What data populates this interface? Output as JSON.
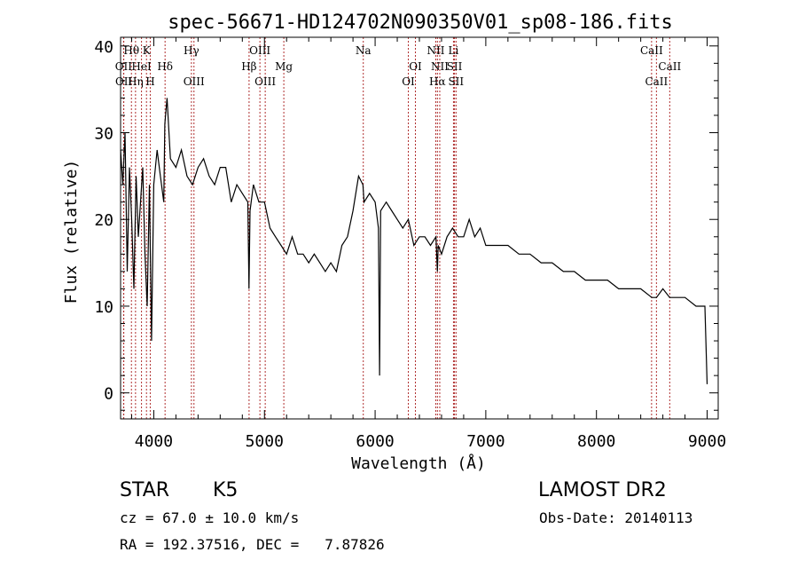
{
  "chart_data": {
    "type": "line",
    "title": "spec-56671-HD124702N090350V01_sp08-186.fits",
    "xlabel": "Wavelength (Å)",
    "ylabel": "Flux (relative)",
    "xlim": [
      3700,
      9100
    ],
    "ylim": [
      -3,
      41
    ],
    "x_ticks": [
      4000,
      5000,
      6000,
      7000,
      8000,
      9000
    ],
    "y_ticks": [
      0,
      10,
      20,
      30,
      40
    ],
    "grid": false,
    "series": [
      {
        "x": [
          3700,
          3720,
          3740,
          3760,
          3780,
          3800,
          3820,
          3840,
          3860,
          3880,
          3900,
          3920,
          3940,
          3960,
          3980,
          4000,
          4030,
          4060,
          4090,
          4100,
          4120,
          4150,
          4200,
          4250,
          4300,
          4350,
          4400,
          4450,
          4500,
          4550,
          4600,
          4650,
          4700,
          4750,
          4800,
          4850,
          4860,
          4870,
          4900,
          4950,
          5000,
          5050,
          5100,
          5150,
          5200,
          5250,
          5300,
          5350,
          5400,
          5450,
          5500,
          5550,
          5600,
          5650,
          5700,
          5750,
          5800,
          5850,
          5890,
          5900,
          5950,
          6000,
          6030,
          6040,
          6050,
          6100,
          6150,
          6200,
          6250,
          6300,
          6350,
          6400,
          6450,
          6500,
          6550,
          6563,
          6570,
          6600,
          6650,
          6700,
          6750,
          6800,
          6850,
          6900,
          6950,
          7000,
          7100,
          7200,
          7300,
          7400,
          7500,
          7600,
          7700,
          7800,
          7900,
          8000,
          8100,
          8200,
          8300,
          8400,
          8500,
          8542,
          8600,
          8662,
          8700,
          8800,
          8900,
          8980,
          9000
        ],
        "y": [
          28,
          24,
          30,
          14,
          26,
          20,
          12,
          25,
          18,
          22,
          26,
          16,
          10,
          24,
          6,
          24,
          28,
          25,
          22,
          31,
          34,
          27,
          26,
          28,
          25,
          24,
          26,
          27,
          25,
          24,
          26,
          26,
          22,
          24,
          23,
          22,
          12,
          21,
          24,
          22,
          22,
          19,
          18,
          17,
          16,
          18,
          16,
          16,
          15,
          16,
          15,
          14,
          15,
          14,
          17,
          18,
          21,
          25,
          24,
          22,
          23,
          22,
          19,
          2,
          21,
          22,
          21,
          20,
          19,
          20,
          17,
          18,
          18,
          17,
          18,
          14,
          17,
          16,
          18,
          19,
          18,
          18,
          20,
          18,
          19,
          17,
          17,
          17,
          16,
          16,
          15,
          15,
          14,
          14,
          13,
          13,
          13,
          12,
          12,
          12,
          11,
          11,
          12,
          11,
          11,
          11,
          10,
          10,
          1
        ]
      }
    ],
    "line_labels": [
      {
        "text": "Hθ",
        "x": 3798,
        "row": 1
      },
      {
        "text": "OII",
        "x": 3727,
        "row": 2
      },
      {
        "text": "OII",
        "x": 3729,
        "row": 3
      },
      {
        "text": "K",
        "x": 3934,
        "row": 1
      },
      {
        "text": "Hη",
        "x": 3835,
        "row": 3
      },
      {
        "text": "HeI",
        "x": 3889,
        "row": 2
      },
      {
        "text": "H",
        "x": 3968,
        "row": 3
      },
      {
        "text": "Hδ",
        "x": 4102,
        "row": 2
      },
      {
        "text": "Hγ",
        "x": 4340,
        "row": 1
      },
      {
        "text": "OIII",
        "x": 4363,
        "row": 3
      },
      {
        "text": "Hβ",
        "x": 4861,
        "row": 2
      },
      {
        "text": "OIII",
        "x": 4959,
        "row": 1
      },
      {
        "text": "OIII",
        "x": 5007,
        "row": 3
      },
      {
        "text": "Mg",
        "x": 5175,
        "row": 2
      },
      {
        "text": "Na",
        "x": 5893,
        "row": 1
      },
      {
        "text": "OI",
        "x": 6300,
        "row": 3
      },
      {
        "text": "OI",
        "x": 6364,
        "row": 2
      },
      {
        "text": "NII",
        "x": 6548,
        "row": 1
      },
      {
        "text": "NII",
        "x": 6584,
        "row": 2
      },
      {
        "text": "Hα",
        "x": 6563,
        "row": 3
      },
      {
        "text": "Li",
        "x": 6708,
        "row": 1
      },
      {
        "text": "SII",
        "x": 6717,
        "row": 2
      },
      {
        "text": "SII",
        "x": 6731,
        "row": 3
      },
      {
        "text": "CaII",
        "x": 8498,
        "row": 1
      },
      {
        "text": "CaII",
        "x": 8542,
        "row": 3
      },
      {
        "text": "CaII",
        "x": 8662,
        "row": 2
      }
    ],
    "line_color": "#b03030"
  },
  "info": {
    "object_type": "STAR",
    "subclass": "K5",
    "survey": "LAMOST DR2",
    "cz": "cz = 67.0 ± 10.0 km/s",
    "obs_date": "Obs-Date: 20140113",
    "coords": "RA = 192.37516, DEC =   7.87826"
  }
}
